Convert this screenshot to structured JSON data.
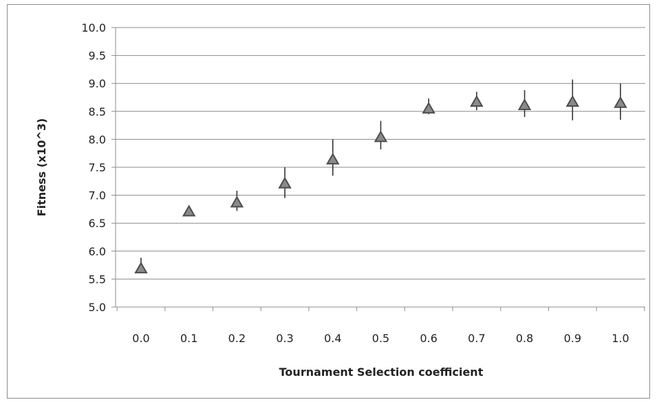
{
  "chart_data": {
    "type": "scatter",
    "title": "",
    "xlabel": "Tournament Selection coefficient",
    "ylabel": "Fitness (x10^3)",
    "x_ticks": [
      "0.0",
      "0.1",
      "0.2",
      "0.3",
      "0.4",
      "0.5",
      "0.6",
      "0.7",
      "0.8",
      "0.9",
      "1.0"
    ],
    "y_ticks": [
      "5.0",
      "5.5",
      "6.0",
      "6.5",
      "7.0",
      "7.5",
      "8.0",
      "8.5",
      "9.0",
      "9.5",
      "10.0"
    ],
    "ylim": [
      5.0,
      10.0
    ],
    "grid": true,
    "legend": "none",
    "marker": "triangle",
    "series": [
      {
        "x": [
          0.0,
          0.1,
          0.2,
          0.3,
          0.4,
          0.5,
          0.6,
          0.7,
          0.8,
          0.9,
          1.0
        ],
        "values": [
          5.7,
          6.72,
          6.88,
          7.22,
          7.65,
          8.05,
          8.56,
          8.68,
          8.62,
          8.68,
          8.66
        ],
        "err_low": [
          5.62,
          6.7,
          6.72,
          6.95,
          7.35,
          7.82,
          8.45,
          8.52,
          8.4,
          8.34,
          8.35
        ],
        "err_high": [
          5.88,
          6.75,
          7.08,
          7.5,
          8.0,
          8.33,
          8.73,
          8.85,
          8.88,
          9.07,
          9.0
        ]
      }
    ],
    "colors": {
      "marker": "#4d4d4d",
      "grid": "#8c8c8c",
      "text": "#222222"
    }
  }
}
